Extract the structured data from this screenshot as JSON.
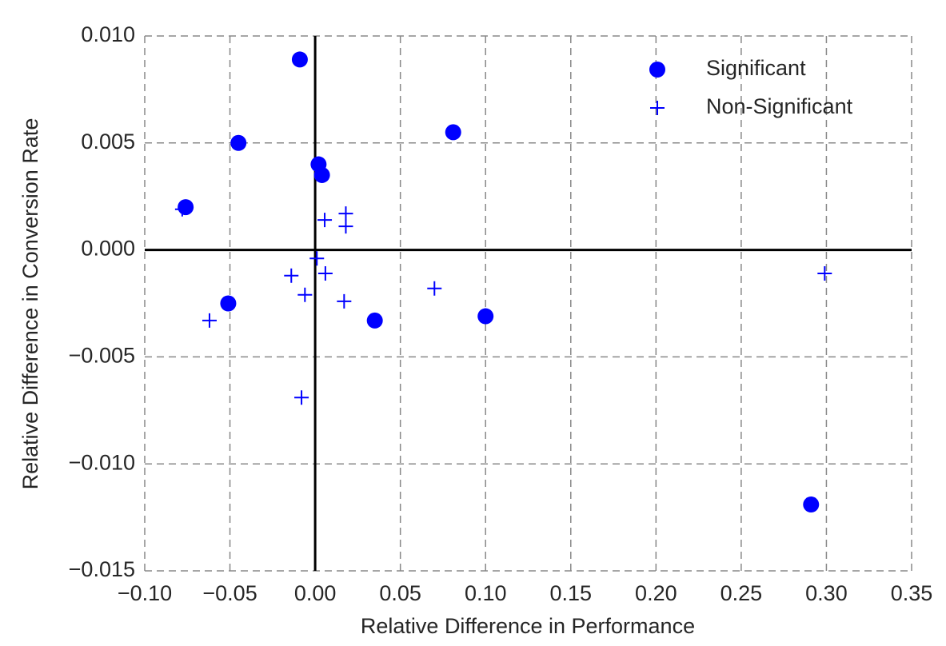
{
  "chart_data": {
    "type": "scatter",
    "xlabel": "Relative Difference in Performance",
    "ylabel": "Relative Difference in Conversion Rate",
    "xlim": [
      -0.1,
      0.35
    ],
    "ylim": [
      -0.015,
      0.01
    ],
    "xticks": [
      {
        "value": -0.1,
        "label": "−0.10"
      },
      {
        "value": -0.05,
        "label": "−0.05"
      },
      {
        "value": 0,
        "label": "0.00"
      },
      {
        "value": 0.05,
        "label": "0.05"
      },
      {
        "value": 0.1,
        "label": "0.10"
      },
      {
        "value": 0.15,
        "label": "0.15"
      },
      {
        "value": 0.2,
        "label": "0.20"
      },
      {
        "value": 0.25,
        "label": "0.25"
      },
      {
        "value": 0.3,
        "label": "0.30"
      },
      {
        "value": 0.35,
        "label": "0.35"
      }
    ],
    "yticks": [
      {
        "value": -0.015,
        "label": "−0.015"
      },
      {
        "value": -0.01,
        "label": "−0.010"
      },
      {
        "value": -0.005,
        "label": "−0.005"
      },
      {
        "value": 0,
        "label": "0.000"
      },
      {
        "value": 0.005,
        "label": "0.005"
      },
      {
        "value": 0.01,
        "label": "0.010"
      }
    ],
    "grid": true,
    "legend": "upper right",
    "series": [
      {
        "name": "Significant",
        "color": "#0000ff",
        "marker": "o",
        "x": [
          -0.009,
          -0.045,
          -0.076,
          0.002,
          0.004,
          0.081,
          -0.051,
          0.035,
          0.1,
          0.291
        ],
        "y": [
          0.0089,
          0.005,
          0.002,
          0.004,
          0.0035,
          0.0055,
          -0.0025,
          -0.0033,
          -0.0031,
          -0.0119
        ]
      },
      {
        "name": "Non-Significant",
        "color": "#0000ff",
        "marker": "+",
        "x": [
          -0.078,
          -0.062,
          -0.014,
          -0.006,
          -0.008,
          0.001,
          0.0056,
          0.006,
          0.018,
          0.018,
          0.017,
          0.07,
          0.299
        ],
        "y": [
          0.0019,
          -0.0033,
          -0.0012,
          -0.0021,
          -0.0069,
          -0.0004,
          0.0014,
          -0.0011,
          0.0017,
          0.0011,
          -0.0024,
          -0.0018,
          -0.0011
        ]
      }
    ]
  }
}
